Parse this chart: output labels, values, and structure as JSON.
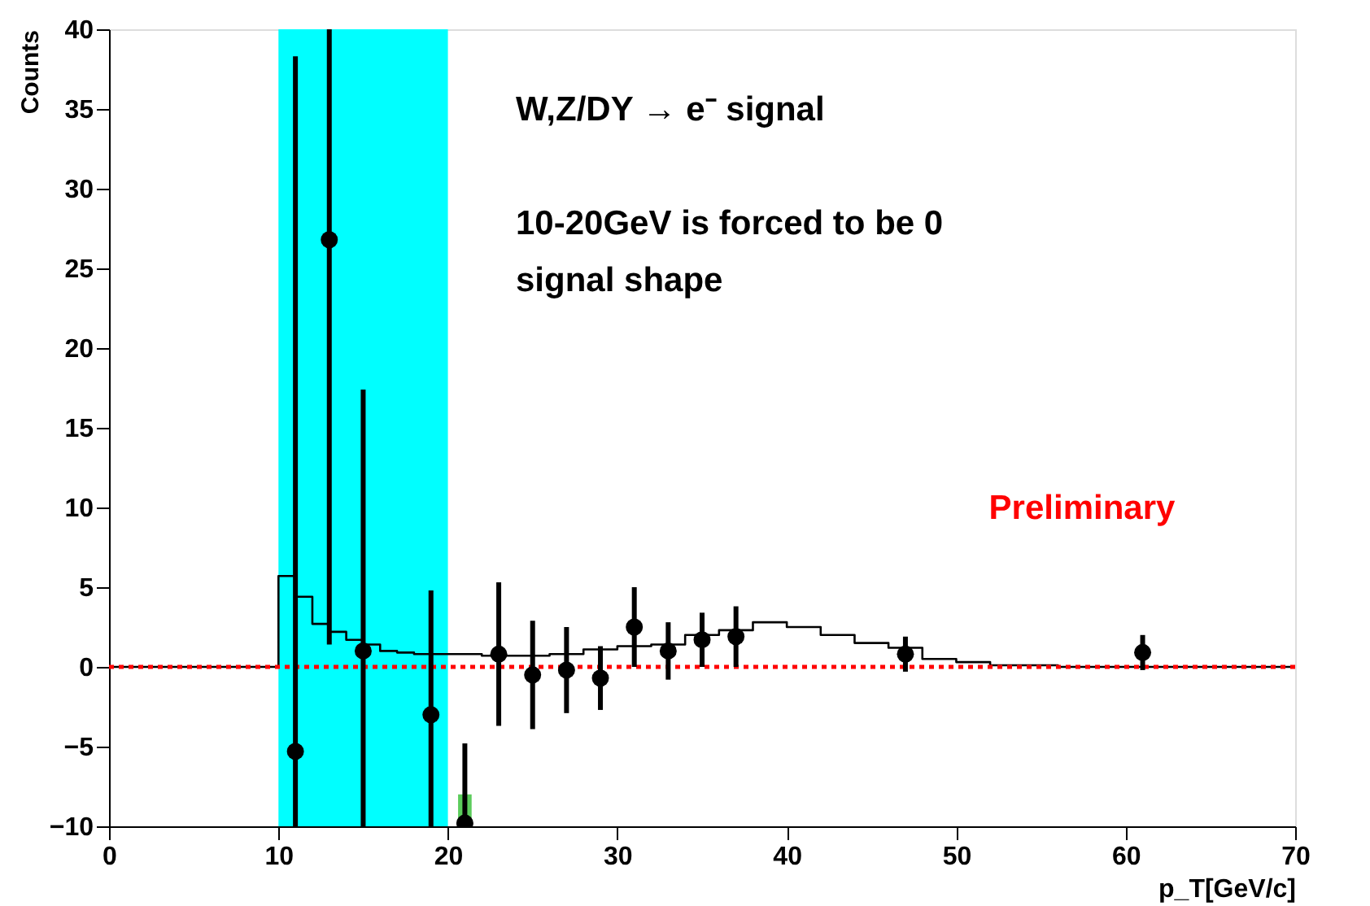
{
  "chart_data": {
    "type": "scatter",
    "xlabel": "p_T[GeV/c]",
    "ylabel": "Counts",
    "xlim": [
      0,
      70
    ],
    "xticks": [
      0,
      10,
      20,
      30,
      40,
      50,
      60,
      70
    ],
    "ylim": [
      -10,
      40
    ],
    "yticks": [
      -10,
      -5,
      0,
      5,
      10,
      15,
      20,
      25,
      30,
      35,
      40
    ],
    "grid": false,
    "marker": "circle",
    "series": [
      {
        "type": "bar",
        "color": "#5ccc5c",
        "x": [
          21
        ],
        "base": [
          -10
        ],
        "values": [
          2
        ]
      },
      {
        "type": "step",
        "marker": "none",
        "color": "#000000",
        "x": [
          0,
          10,
          11,
          12,
          13,
          14,
          15,
          16,
          17,
          18,
          19,
          20,
          22,
          24,
          26,
          28,
          30,
          32,
          34,
          36,
          38,
          40,
          42,
          44,
          46,
          48,
          50,
          52,
          56,
          70
        ],
        "values": [
          0,
          5.7,
          4.4,
          2.7,
          2.2,
          1.7,
          1.4,
          1.0,
          0.9,
          0.8,
          0.8,
          0.8,
          0.7,
          0.7,
          0.8,
          1.1,
          1.3,
          1.4,
          2.0,
          2.3,
          2.8,
          2.5,
          2.0,
          1.5,
          1.2,
          0.5,
          0.3,
          0.1,
          0,
          0
        ]
      },
      {
        "color": "#000000",
        "x": [
          11,
          13,
          15,
          19,
          21,
          23,
          25,
          27,
          29,
          31,
          33,
          35,
          37,
          47,
          61
        ],
        "values": [
          -5.3,
          26.8,
          1.0,
          -3.0,
          -9.8,
          0.8,
          -0.5,
          -0.2,
          -0.7,
          2.5,
          1.0,
          1.7,
          1.9,
          0.8,
          0.9
        ],
        "errors": [
          [
            -10,
            38.3
          ],
          [
            1.4,
            40
          ],
          [
            -10,
            17.4
          ],
          [
            -10,
            4.8
          ],
          [
            -10,
            -4.8
          ],
          4.5,
          3.4,
          2.7,
          2.0,
          2.5,
          1.8,
          1.7,
          1.9,
          1.1,
          1.1
        ]
      }
    ],
    "bands": [
      {
        "axis": "x",
        "from": 10,
        "to": 20,
        "color": "#00ffff"
      }
    ],
    "ref_lines": [
      {
        "axis": "y",
        "value": 0,
        "color": "#ff0000",
        "line_style": "dotted"
      }
    ],
    "annotations": [
      "W,Z/DY → e⁻ signal",
      "10-20GeV is forced to be 0",
      "signal shape",
      "Preliminary"
    ]
  }
}
